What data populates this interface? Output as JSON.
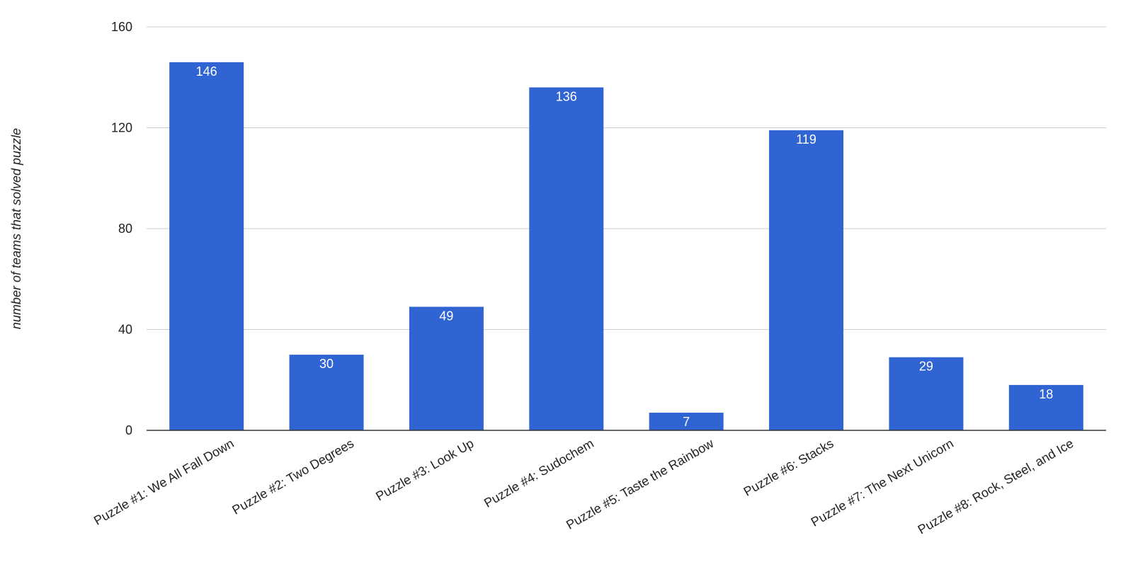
{
  "chart_data": {
    "type": "bar",
    "categories": [
      "Puzzle #1: We All Fall Down",
      "Puzzle #2: Two Degrees",
      "Puzzle #3: Look Up",
      "Puzzle #4: Sudochem",
      "Puzzle #5: Taste the Rainbow",
      "Puzzle #6: Stacks",
      "Puzzle #7: The Next Unicorn",
      "Puzzle #8: Rock, Steel, and Ice"
    ],
    "values": [
      146,
      30,
      49,
      136,
      7,
      119,
      29,
      18
    ],
    "title": "",
    "xlabel": "",
    "ylabel": "number of teams that solved puzzle",
    "ylim": [
      0,
      160
    ],
    "yticks": [
      0,
      40,
      80,
      120,
      160
    ],
    "grid": true,
    "legend": "none",
    "bar_color": "#3064d2",
    "data_labels": true
  }
}
